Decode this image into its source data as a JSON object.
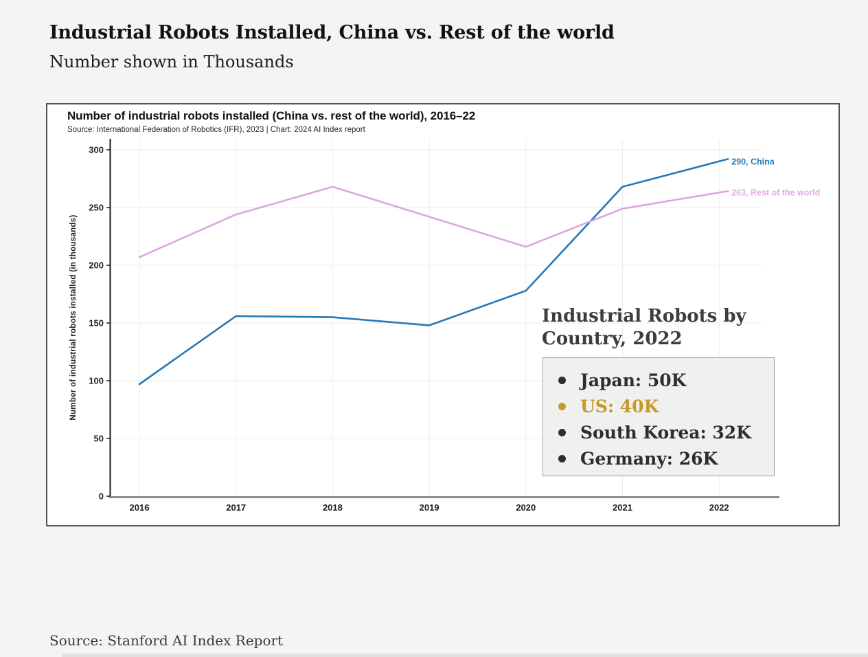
{
  "page": {
    "title": "Industrial Robots Installed, China vs. Rest of the world",
    "subtitle": "Number shown in Thousands",
    "footer_source": "Source: Stanford AI Index Report"
  },
  "chart_data": {
    "type": "line",
    "title": "Number of industrial robots installed (China vs. rest of the world), 2016–22",
    "source": "Source: International Federation of Robotics (IFR), 2023 | Chart: 2024 AI Index report",
    "ylabel": "Number of industrial robots installed (in thousands)",
    "x": [
      2016,
      2017,
      2018,
      2019,
      2020,
      2021,
      2022
    ],
    "ylim": [
      0,
      300
    ],
    "yticks": [
      0,
      50,
      100,
      150,
      200,
      250,
      300
    ],
    "grid": true,
    "legend_position": "line-end-labels",
    "series": [
      {
        "name": "China",
        "color": "#2878b5",
        "label_color": "#2878b5",
        "values": [
          97,
          156,
          155,
          148,
          178,
          268,
          290
        ],
        "end_label": "290, China"
      },
      {
        "name": "Rest of the world",
        "color": "#dba7e0",
        "label_color": "#e2abe6",
        "values": [
          207,
          244,
          268,
          242,
          216,
          249,
          263
        ],
        "end_label": "263, Rest of the world"
      }
    ],
    "axis_colors": {
      "y_axis": "#1a1a1a",
      "x_axis": "#8c8c8c",
      "grid": "#ededea",
      "tick_text": "#1f1f1f"
    }
  },
  "annotation": {
    "heading": "Industrial Robots by Country, 2022",
    "items": [
      {
        "label": "Japan: 50K",
        "color": "#2d2d2d"
      },
      {
        "label": "US: 40K",
        "color": "#c5992d"
      },
      {
        "label": "South Korea: 32K",
        "color": "#2d2d2d"
      },
      {
        "label": "Germany: 26K",
        "color": "#2d2d2d"
      }
    ]
  }
}
